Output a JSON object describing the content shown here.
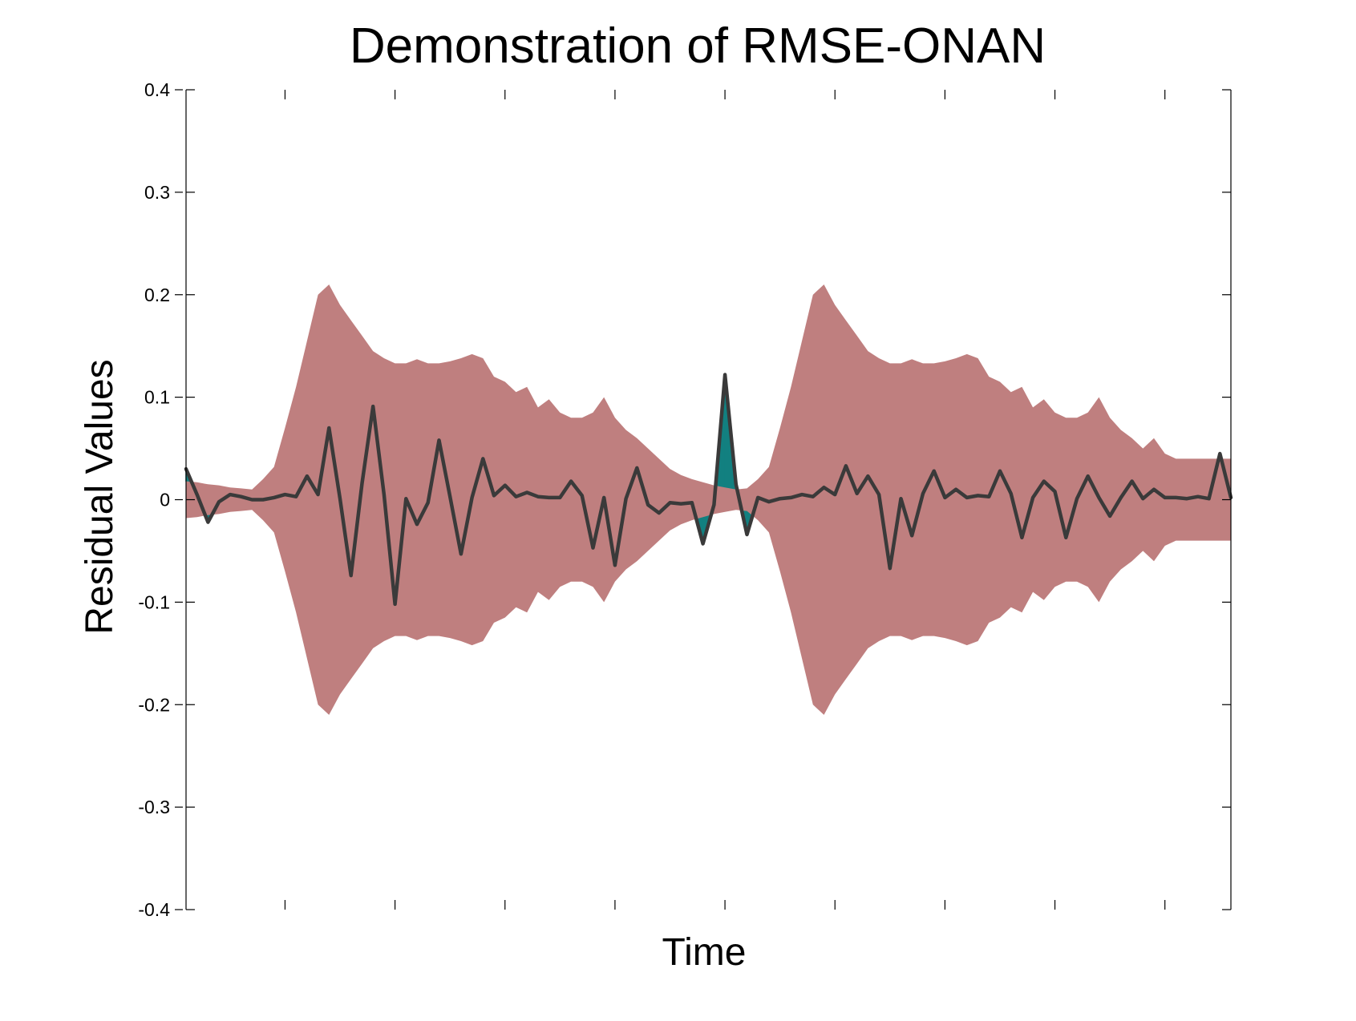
{
  "chart_data": {
    "type": "line",
    "title": "Demonstration of  RMSE-ONAN",
    "xlabel": "Time",
    "ylabel": "Residual Values",
    "ylim": [
      -0.4,
      0.4
    ],
    "xlim": [
      0,
      95
    ],
    "yticks": [
      {
        "value": 0.4,
        "label": "0.4"
      },
      {
        "value": 0.3,
        "label": "0.3"
      },
      {
        "value": 0.2,
        "label": "0.2"
      },
      {
        "value": 0.1,
        "label": "0.1"
      },
      {
        "value": 0,
        "label": "0"
      },
      {
        "value": -0.1,
        "label": "-0.1"
      },
      {
        "value": -0.2,
        "label": "-0.2"
      },
      {
        "value": -0.3,
        "label": "-0.3"
      },
      {
        "value": -0.4,
        "label": "-0.4"
      }
    ],
    "xticks": [
      9,
      19,
      29,
      39,
      49,
      59,
      69,
      79,
      89
    ],
    "grid": false,
    "colors": {
      "band": "#bf7f7f",
      "residual_line": "#3a3a3a",
      "exceedance": "#128080",
      "axis": "#000000"
    },
    "series": [
      {
        "role": "residual",
        "x": [
          0,
          1,
          2,
          3,
          4,
          5,
          6,
          7,
          8,
          9,
          10,
          11,
          12,
          13,
          14,
          15,
          16,
          17,
          18,
          19,
          20,
          21,
          22,
          23,
          24,
          25,
          26,
          27,
          28,
          29,
          30,
          31,
          32,
          33,
          34,
          35,
          36,
          37,
          38,
          39,
          40,
          41,
          42,
          43,
          44,
          45,
          46,
          47,
          48,
          49,
          50,
          51,
          52,
          53,
          54,
          55,
          56,
          57,
          58,
          59,
          60,
          61,
          62,
          63,
          64,
          65,
          66,
          67,
          68,
          69,
          70,
          71,
          72,
          73,
          74,
          75,
          76,
          77,
          78,
          79,
          80,
          81,
          82,
          83,
          84,
          85,
          86,
          87,
          88,
          89,
          90,
          91,
          92,
          93,
          94,
          95
        ],
        "y": [
          0.03,
          0.005,
          -0.022,
          -0.002,
          0.005,
          0.003,
          0,
          0,
          0.002,
          0.005,
          0.003,
          0.023,
          0.005,
          0.07,
          0.001,
          -0.074,
          0.016,
          0.091,
          0.005,
          -0.102,
          0.001,
          -0.024,
          -0.003,
          0.058,
          0.003,
          -0.053,
          0.002,
          0.04,
          0.004,
          0.014,
          0.003,
          0.007,
          0.003,
          0.002,
          0.002,
          0.018,
          0.004,
          -0.047,
          0.002,
          -0.064,
          0.001,
          0.031,
          -0.005,
          -0.013,
          -0.003,
          -0.004,
          -0.003,
          -0.043,
          -0.005,
          0.122,
          0.015,
          -0.034,
          0.002,
          -0.002,
          0.001,
          0.002,
          0.005,
          0.003,
          0.012,
          0.005,
          0.033,
          0.006,
          0.023,
          0.005,
          -0.067,
          0.001,
          -0.035,
          0.006,
          0.028,
          0.002,
          0.01,
          0.002,
          0.004,
          0.003,
          0.028,
          0.006,
          -0.037,
          0.002,
          0.018,
          0.008,
          -0.037,
          0.001,
          0.023,
          0.002,
          -0.016,
          0.002,
          0.018,
          0.001,
          0.01,
          0.002,
          0.002,
          0.001,
          0.003,
          0.001,
          0.045,
          0.002
        ]
      },
      {
        "role": "band-upper",
        "x": [
          0,
          1,
          2,
          3,
          4,
          5,
          6,
          7,
          8,
          9,
          10,
          11,
          12,
          13,
          14,
          15,
          16,
          17,
          18,
          19,
          20,
          21,
          22,
          23,
          24,
          25,
          26,
          27,
          28,
          29,
          30,
          31,
          32,
          33,
          34,
          35,
          36,
          37,
          38,
          39,
          40,
          41,
          42,
          43,
          44,
          45,
          46,
          47,
          48,
          49,
          50,
          51,
          52,
          53,
          54,
          55,
          56,
          57,
          58,
          59,
          60,
          61,
          62,
          63,
          64,
          65,
          66,
          67,
          68,
          69,
          70,
          71,
          72,
          73,
          74,
          75,
          76,
          77,
          78,
          79,
          80,
          81,
          82,
          83,
          84,
          85,
          86,
          87,
          88,
          89,
          90,
          91,
          92,
          93,
          94,
          95
        ],
        "y": [
          0.018,
          0.017,
          0.015,
          0.014,
          0.012,
          0.011,
          0.01,
          0.02,
          0.032,
          0.07,
          0.11,
          0.155,
          0.2,
          0.21,
          0.19,
          0.175,
          0.16,
          0.145,
          0.138,
          0.133,
          0.133,
          0.137,
          0.133,
          0.133,
          0.135,
          0.138,
          0.142,
          0.138,
          0.12,
          0.115,
          0.105,
          0.11,
          0.09,
          0.098,
          0.085,
          0.08,
          0.08,
          0.085,
          0.1,
          0.08,
          0.068,
          0.06,
          0.05,
          0.04,
          0.03,
          0.024,
          0.02,
          0.017,
          0.014,
          0.012,
          0.01,
          0.011,
          0.02,
          0.032,
          0.07,
          0.11,
          0.155,
          0.2,
          0.21,
          0.19,
          0.175,
          0.16,
          0.145,
          0.138,
          0.133,
          0.133,
          0.137,
          0.133,
          0.133,
          0.135,
          0.138,
          0.142,
          0.138,
          0.12,
          0.115,
          0.105,
          0.11,
          0.09,
          0.098,
          0.085,
          0.08,
          0.08,
          0.085,
          0.1,
          0.08,
          0.068,
          0.06,
          0.05,
          0.06,
          0.045,
          0.04,
          0.04,
          0.04,
          0.04,
          0.04,
          0.04
        ]
      },
      {
        "role": "band-lower",
        "x": [
          0,
          1,
          2,
          3,
          4,
          5,
          6,
          7,
          8,
          9,
          10,
          11,
          12,
          13,
          14,
          15,
          16,
          17,
          18,
          19,
          20,
          21,
          22,
          23,
          24,
          25,
          26,
          27,
          28,
          29,
          30,
          31,
          32,
          33,
          34,
          35,
          36,
          37,
          38,
          39,
          40,
          41,
          42,
          43,
          44,
          45,
          46,
          47,
          48,
          49,
          50,
          51,
          52,
          53,
          54,
          55,
          56,
          57,
          58,
          59,
          60,
          61,
          62,
          63,
          64,
          65,
          66,
          67,
          68,
          69,
          70,
          71,
          72,
          73,
          74,
          75,
          76,
          77,
          78,
          79,
          80,
          81,
          82,
          83,
          84,
          85,
          86,
          87,
          88,
          89,
          90,
          91,
          92,
          93,
          94,
          95
        ],
        "y": [
          -0.018,
          -0.017,
          -0.015,
          -0.014,
          -0.012,
          -0.011,
          -0.01,
          -0.02,
          -0.032,
          -0.07,
          -0.11,
          -0.155,
          -0.2,
          -0.21,
          -0.19,
          -0.175,
          -0.16,
          -0.145,
          -0.138,
          -0.133,
          -0.133,
          -0.137,
          -0.133,
          -0.133,
          -0.135,
          -0.138,
          -0.142,
          -0.138,
          -0.12,
          -0.115,
          -0.105,
          -0.11,
          -0.09,
          -0.098,
          -0.085,
          -0.08,
          -0.08,
          -0.085,
          -0.1,
          -0.08,
          -0.068,
          -0.06,
          -0.05,
          -0.04,
          -0.03,
          -0.024,
          -0.02,
          -0.017,
          -0.014,
          -0.012,
          -0.01,
          -0.011,
          -0.02,
          -0.032,
          -0.07,
          -0.11,
          -0.155,
          -0.2,
          -0.21,
          -0.19,
          -0.175,
          -0.16,
          -0.145,
          -0.138,
          -0.133,
          -0.133,
          -0.137,
          -0.133,
          -0.133,
          -0.135,
          -0.138,
          -0.142,
          -0.138,
          -0.12,
          -0.115,
          -0.105,
          -0.11,
          -0.09,
          -0.098,
          -0.085,
          -0.08,
          -0.08,
          -0.085,
          -0.1,
          -0.08,
          -0.068,
          -0.06,
          -0.05,
          -0.06,
          -0.045,
          -0.04,
          -0.04,
          -0.04,
          -0.04,
          -0.04,
          -0.04
        ]
      }
    ]
  }
}
